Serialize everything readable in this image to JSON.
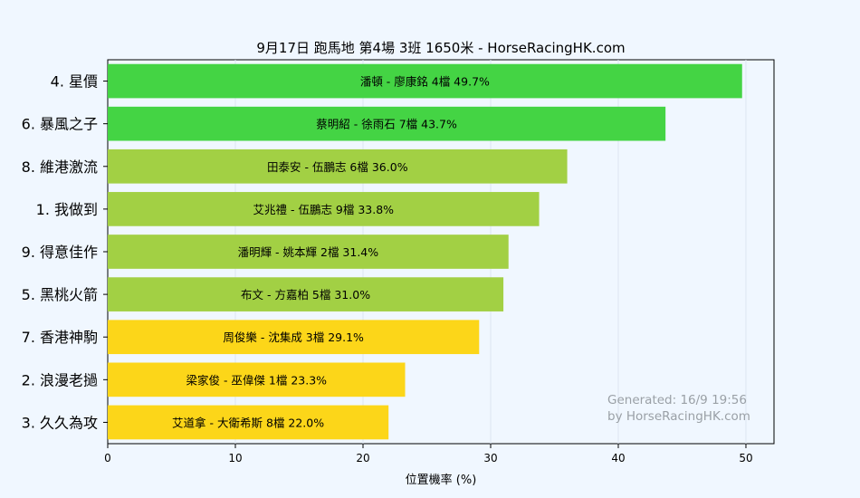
{
  "chart_data": {
    "type": "bar",
    "orientation": "horizontal",
    "title": "9月17日  跑馬地  第4場  3班  1650米 - HorseRacingHK.com",
    "xlabel": "位置機率 (%)",
    "ylabel": "",
    "xlim": [
      0,
      52.2
    ],
    "xticks": [
      0,
      10,
      20,
      30,
      40,
      50
    ],
    "grid": "vertical",
    "categories": [
      "4. 星價",
      "6. 暴風之子",
      "8. 維港激流",
      "1. 我做到",
      "9. 得意佳作",
      "5. 黑桃火箭",
      "7. 香港神駒",
      "2. 浪漫老撾",
      "3. 久久為攻"
    ],
    "values": [
      49.7,
      43.7,
      36.0,
      33.8,
      31.4,
      31.0,
      29.1,
      23.3,
      22.0
    ],
    "bar_labels": [
      "潘頓 - 廖康銘 4檔  49.7%",
      "蔡明紹 - 徐雨石 7檔  43.7%",
      "田泰安 - 伍鵬志 6檔  36.0%",
      "艾兆禮 - 伍鵬志 9檔  33.8%",
      "潘明輝 - 姚本輝 2檔  31.4%",
      "布文 - 方嘉柏 5檔  31.0%",
      "周俊樂 - 沈集成 3檔  29.1%",
      "梁家俊 - 巫偉傑 1檔  23.3%",
      "艾道拿 - 大衛希斯 8檔  22.0%"
    ],
    "colors": [
      "#44d444",
      "#44d444",
      "#a2d044",
      "#a2d044",
      "#a2d044",
      "#a2d044",
      "#fcd619",
      "#fcd619",
      "#fcd619"
    ],
    "annotations": [
      "Generated: 16/9 19:56",
      "by HorseRacingHK.com"
    ]
  },
  "style": {
    "background": "#f0f7ff",
    "plot_background": "#f0f7ff",
    "grid_color": "#dde6f0"
  }
}
